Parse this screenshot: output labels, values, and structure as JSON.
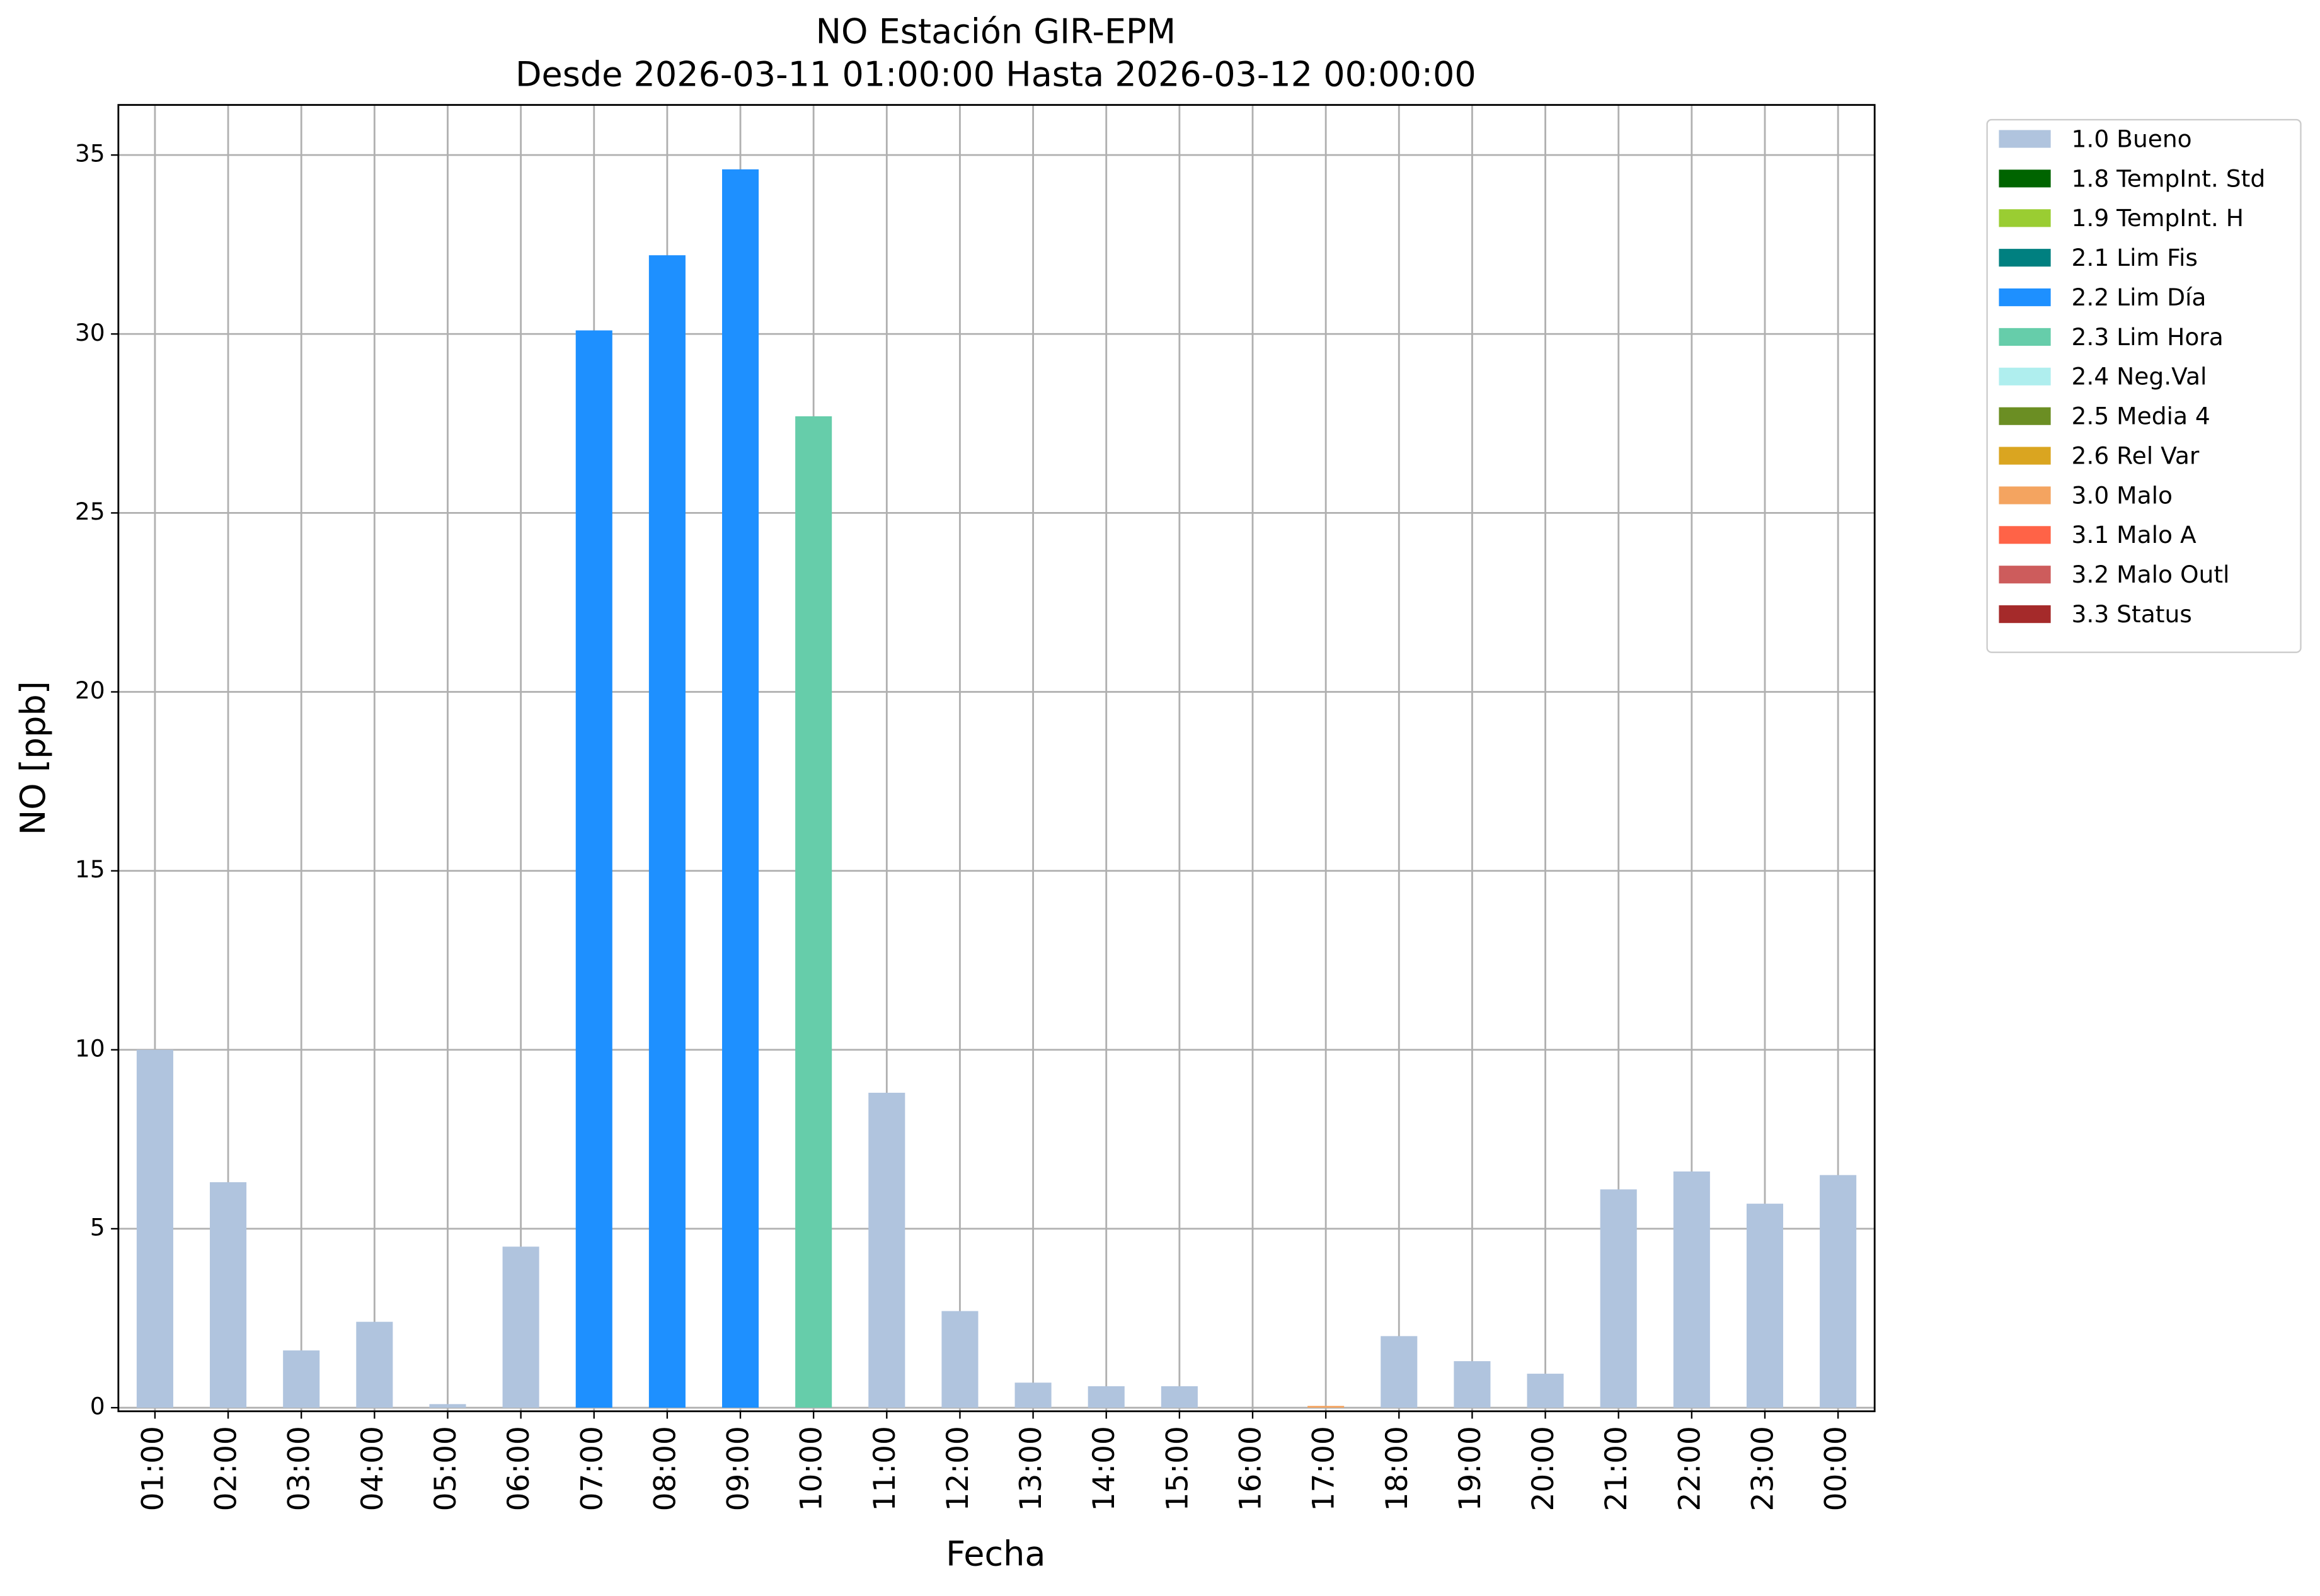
{
  "chart_data": {
    "type": "bar",
    "title": "NO Estación GIR-EPM",
    "subtitle": "Desde 2026-03-11 01:00:00 Hasta 2026-03-12 00:00:00",
    "x_label": "Fecha",
    "y_label": "NO [ppb]",
    "categories": [
      "01:00",
      "02:00",
      "03:00",
      "04:00",
      "05:00",
      "06:00",
      "07:00",
      "08:00",
      "09:00",
      "10:00",
      "11:00",
      "12:00",
      "13:00",
      "14:00",
      "15:00",
      "16:00",
      "17:00",
      "18:00",
      "19:00",
      "20:00",
      "21:00",
      "22:00",
      "23:00",
      "00:00"
    ],
    "series": [
      {
        "name": "1.0 Bueno",
        "color": "#b0c4de",
        "values": [
          10.0,
          6.3,
          1.6,
          2.4,
          0.1,
          4.5,
          null,
          null,
          null,
          null,
          8.8,
          2.7,
          0.7,
          0.6,
          0.6,
          0,
          null,
          2.0,
          1.3,
          0.95,
          6.1,
          6.6,
          5.7,
          6.5
        ]
      },
      {
        "name": "1.8 TempInt. Std",
        "color": "#006400",
        "values": [
          null,
          null,
          null,
          null,
          null,
          null,
          null,
          null,
          null,
          null,
          null,
          null,
          null,
          null,
          null,
          null,
          null,
          null,
          null,
          null,
          null,
          null,
          null,
          null
        ]
      },
      {
        "name": "1.9 TempInt. H",
        "color": "#9acd32",
        "values": [
          null,
          null,
          null,
          null,
          null,
          null,
          null,
          null,
          null,
          null,
          null,
          null,
          null,
          null,
          null,
          null,
          null,
          null,
          null,
          null,
          null,
          null,
          null,
          null
        ]
      },
      {
        "name": "2.1 Lim Fis",
        "color": "#008080",
        "values": [
          null,
          null,
          null,
          null,
          null,
          null,
          null,
          null,
          null,
          null,
          null,
          null,
          null,
          null,
          null,
          null,
          null,
          null,
          null,
          null,
          null,
          null,
          null,
          null
        ]
      },
      {
        "name": "2.2 Lim Día",
        "color": "#1e90ff",
        "values": [
          null,
          null,
          null,
          null,
          null,
          null,
          30.1,
          32.2,
          34.6,
          null,
          null,
          null,
          null,
          null,
          null,
          null,
          null,
          null,
          null,
          null,
          null,
          null,
          null,
          null
        ]
      },
      {
        "name": "2.3 Lim Hora",
        "color": "#66cdaa",
        "values": [
          null,
          null,
          null,
          null,
          null,
          null,
          null,
          null,
          null,
          27.7,
          null,
          null,
          null,
          null,
          null,
          null,
          null,
          null,
          null,
          null,
          null,
          null,
          null,
          null
        ]
      },
      {
        "name": "2.4 Neg.Val",
        "color": "#afeeee",
        "values": [
          null,
          null,
          null,
          null,
          null,
          null,
          null,
          null,
          null,
          null,
          null,
          null,
          null,
          null,
          null,
          null,
          null,
          null,
          null,
          null,
          null,
          null,
          null,
          null
        ]
      },
      {
        "name": "2.5 Media 4",
        "color": "#6b8e23",
        "values": [
          null,
          null,
          null,
          null,
          null,
          null,
          null,
          null,
          null,
          null,
          null,
          null,
          null,
          null,
          null,
          null,
          null,
          null,
          null,
          null,
          null,
          null,
          null,
          null
        ]
      },
      {
        "name": "2.6 Rel Var",
        "color": "#daa520",
        "values": [
          null,
          null,
          null,
          null,
          null,
          null,
          null,
          null,
          null,
          null,
          null,
          null,
          null,
          null,
          null,
          null,
          null,
          null,
          null,
          null,
          null,
          null,
          null,
          null
        ]
      },
      {
        "name": "3.0 Malo",
        "color": "#f4a460",
        "values": [
          null,
          null,
          null,
          null,
          null,
          null,
          null,
          null,
          null,
          null,
          null,
          null,
          null,
          null,
          null,
          null,
          0.05,
          null,
          null,
          null,
          null,
          null,
          null,
          null
        ]
      },
      {
        "name": "3.1 Malo A",
        "color": "#ff6347",
        "values": [
          null,
          null,
          null,
          null,
          null,
          null,
          null,
          null,
          null,
          null,
          null,
          null,
          null,
          null,
          null,
          null,
          null,
          null,
          null,
          null,
          null,
          null,
          null,
          null
        ]
      },
      {
        "name": "3.2 Malo Outl",
        "color": "#cd5c5c",
        "values": [
          null,
          null,
          null,
          null,
          null,
          null,
          null,
          null,
          null,
          null,
          null,
          null,
          null,
          null,
          null,
          null,
          null,
          null,
          null,
          null,
          null,
          null,
          null,
          null
        ]
      },
      {
        "name": "3.3 Status",
        "color": "#a52a2a",
        "values": [
          null,
          null,
          null,
          null,
          null,
          null,
          null,
          null,
          null,
          null,
          null,
          null,
          null,
          null,
          null,
          null,
          null,
          null,
          null,
          null,
          null,
          null,
          null,
          null
        ]
      }
    ],
    "ylim": [
      -0.1,
      36.4
    ],
    "yticks": [
      0,
      5,
      10,
      15,
      20,
      25,
      30,
      35
    ],
    "grid": true,
    "legend": "outside upper right"
  }
}
